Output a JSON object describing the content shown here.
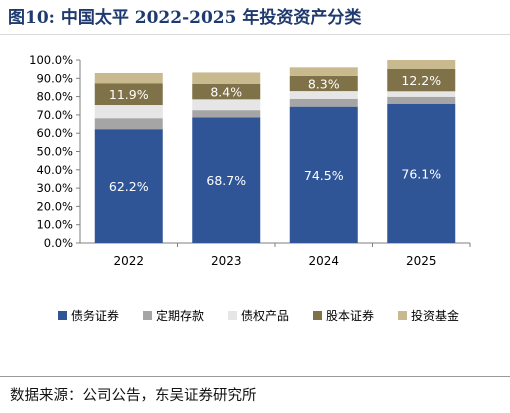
{
  "title": "图10:  中国太平 2022-2025 年投资资产分类",
  "source": "数据来源：公司公告，东吴证券研究所",
  "chart_data": {
    "type": "bar",
    "stacked": true,
    "categories": [
      "2022",
      "2023",
      "2024",
      "2025"
    ],
    "y_tick_labels": [
      "0.0%",
      "10.0%",
      "20.0%",
      "30.0%",
      "40.0%",
      "50.0%",
      "60.0%",
      "70.0%",
      "80.0%",
      "90.0%",
      "100.0%"
    ],
    "ylim": [
      0,
      100
    ],
    "series": [
      {
        "name": "债务证券",
        "color": "#2f5597",
        "values": [
          62.2,
          68.7,
          74.5,
          76.1
        ],
        "labels": [
          "62.2%",
          "68.7%",
          "74.5%",
          "76.1%"
        ],
        "label_color": "#ffffff"
      },
      {
        "name": "定期存款",
        "color": "#a5a5a5",
        "values": [
          6.0,
          3.9,
          4.3,
          3.8
        ],
        "labels": [
          "",
          "",
          "",
          ""
        ]
      },
      {
        "name": "债权产品",
        "color": "#e7e6e6",
        "values": [
          7.2,
          5.9,
          4.2,
          3.0
        ],
        "labels": [
          "",
          "",
          "",
          ""
        ]
      },
      {
        "name": "股本证券",
        "color": "#7f7148",
        "values": [
          11.9,
          8.4,
          8.3,
          12.2
        ],
        "labels": [
          "11.9%",
          "8.4%",
          "8.3%",
          "12.2%"
        ],
        "label_color": "#ffffff"
      },
      {
        "name": "投资基金",
        "color": "#c9b98f",
        "values": [
          5.6,
          6.3,
          4.7,
          4.9
        ],
        "labels": [
          "",
          "",
          "",
          ""
        ]
      }
    ],
    "legend_position": "bottom",
    "grid": false
  }
}
